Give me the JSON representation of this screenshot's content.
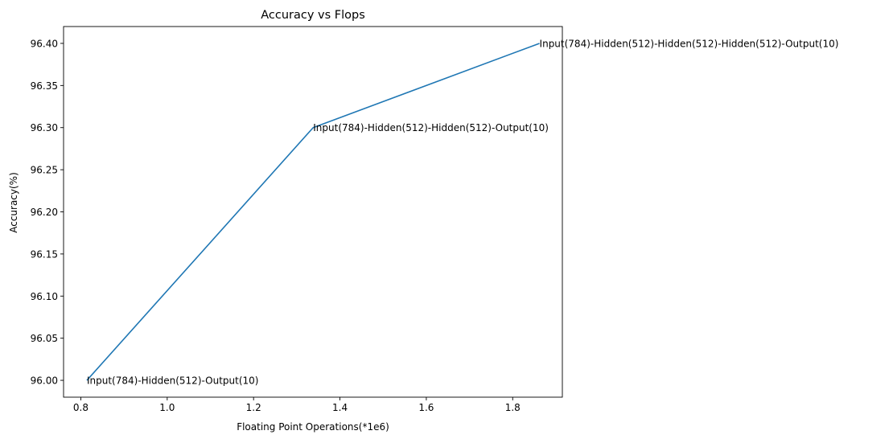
{
  "chart_data": {
    "type": "line",
    "title": "Accuracy vs Flops",
    "xlabel": "Floating Point Operations(*1e6)",
    "ylabel": "Accuracy(%)",
    "xlim": [
      0.76,
      1.915
    ],
    "ylim": [
      95.98,
      96.42
    ],
    "xticks": [
      0.8,
      1.0,
      1.2,
      1.4,
      1.6,
      1.8
    ],
    "xtick_labels": [
      "0.8",
      "1.0",
      "1.2",
      "1.4",
      "1.6",
      "1.8"
    ],
    "yticks": [
      96.0,
      96.05,
      96.1,
      96.15,
      96.2,
      96.25,
      96.3,
      96.35,
      96.4
    ],
    "ytick_labels": [
      "96.00",
      "96.05",
      "96.10",
      "96.15",
      "96.20",
      "96.25",
      "96.30",
      "96.35",
      "96.40"
    ],
    "grid": false,
    "series": [
      {
        "color": "#1f77b4",
        "x": [
          0.814,
          1.338,
          1.862
        ],
        "y": [
          96.0,
          96.3,
          96.4
        ]
      }
    ],
    "annotations": [
      {
        "x": 0.814,
        "y": 96.0,
        "text": "Input(784)-Hidden(512)-Output(10)"
      },
      {
        "x": 1.338,
        "y": 96.3,
        "text": "Input(784)-Hidden(512)-Hidden(512)-Output(10)"
      },
      {
        "x": 1.862,
        "y": 96.4,
        "text": "Input(784)-Hidden(512)-Hidden(512)-Hidden(512)-Output(10)"
      }
    ]
  }
}
